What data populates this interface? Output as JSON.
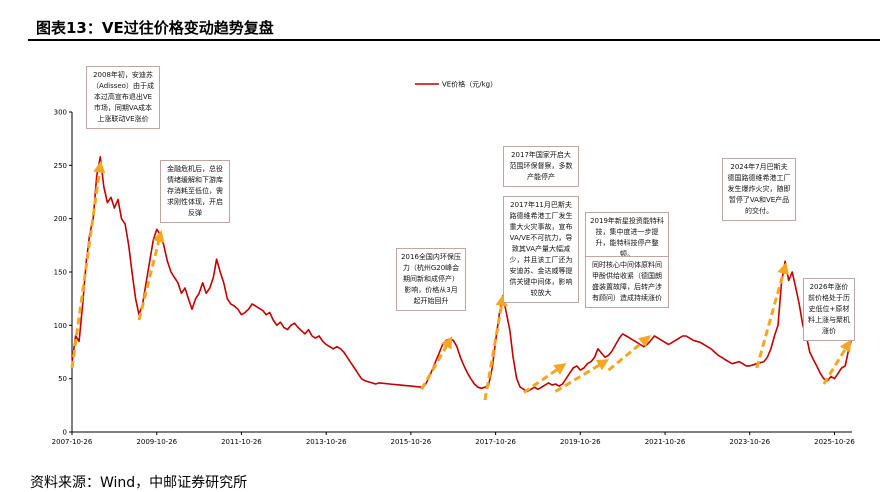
{
  "header": {
    "title": "图表13：VE过往价格变动趋势复盘"
  },
  "footer": {
    "source": "资料来源：Wind，中邮证券研究所"
  },
  "colors": {
    "series": "#c00000",
    "arrow": "#f5a623",
    "axis": "#000000",
    "annotation_border": "#c4a3a3"
  },
  "annotations": [
    {
      "id": "a2008",
      "text": "2008年初，安迪苏（Adisseo）由于成本过高宣布退出VE市场，同期VA成本上涨联动VE涨价"
    },
    {
      "id": "a2009",
      "text": "金融危机后，总役情绪缓解和下游库存消耗至低位，需求刚性体现，开启反弹"
    },
    {
      "id": "a2016",
      "text": "2016全国内环保压力（杭州G20峰会期间新和成停产）影响，价格从3月起开始回升"
    },
    {
      "id": "a2017a",
      "text": "2017年国家开启大范围环保督察，多数产能停产"
    },
    {
      "id": "a2017b",
      "text": "2017年11月巴斯夫路德维希港工厂发生重大火灾事故，宣布VA/VE不可抗力，导致其VA产量大幅减少，并且该工厂还为安迪苏、金达威等提供关键中间体，影响较放大"
    },
    {
      "id": "a2019",
      "text": "2019年新星投资能特科技，集中度进一步提升，能特科技停产整顿。"
    },
    {
      "id": "a2019b",
      "text": "同时核心中间体原料间甲酚供给收紧（德国朗盛装置故障，后转产涉有顾问）造成持续涨价"
    },
    {
      "id": "a2024",
      "text": "2024年7月巴斯夫德国路德维希港工厂发生爆炸火灾，随即暂停了VA和VE产品的交付。"
    },
    {
      "id": "a2026",
      "text": "2026年涨价前价格处于历史低位+原材料上涨与聚机涨价"
    }
  ],
  "chart_data": {
    "type": "line",
    "title": "",
    "xlabel": "",
    "ylabel": "",
    "ylim": [
      0,
      300
    ],
    "yticks": [
      0,
      50,
      100,
      150,
      200,
      250,
      300
    ],
    "xlim": [
      "2007-10-26",
      "2026-03-26"
    ],
    "xticks": [
      "2007-10-26",
      "2009-10-26",
      "2011-10-26",
      "2013-10-26",
      "2015-10-26",
      "2017-10-26",
      "2019-10-26",
      "2021-10-26",
      "2023-10-26",
      "2025-10-26"
    ],
    "legend": {
      "position": "top-center"
    },
    "grid": false,
    "series": [
      {
        "name": "VE价格（元/kg）",
        "points": [
          [
            "2007-10-26",
            65
          ],
          [
            "2007-11-26",
            90
          ],
          [
            "2007-12-26",
            85
          ],
          [
            "2008-01-26",
            120
          ],
          [
            "2008-02-26",
            160
          ],
          [
            "2008-03-26",
            185
          ],
          [
            "2008-04-26",
            200
          ],
          [
            "2008-05-26",
            240
          ],
          [
            "2008-06-26",
            258
          ],
          [
            "2008-07-26",
            230
          ],
          [
            "2008-08-26",
            215
          ],
          [
            "2008-09-26",
            220
          ],
          [
            "2008-10-26",
            210
          ],
          [
            "2008-11-26",
            218
          ],
          [
            "2008-12-26",
            200
          ],
          [
            "2009-01-26",
            195
          ],
          [
            "2009-02-26",
            175
          ],
          [
            "2009-03-26",
            150
          ],
          [
            "2009-04-26",
            125
          ],
          [
            "2009-05-26",
            110
          ],
          [
            "2009-06-26",
            120
          ],
          [
            "2009-07-26",
            140
          ],
          [
            "2009-08-26",
            160
          ],
          [
            "2009-09-26",
            180
          ],
          [
            "2009-10-26",
            190
          ],
          [
            "2009-11-26",
            185
          ],
          [
            "2009-12-26",
            175
          ],
          [
            "2010-01-26",
            160
          ],
          [
            "2010-02-26",
            150
          ],
          [
            "2010-03-26",
            145
          ],
          [
            "2010-04-26",
            140
          ],
          [
            "2010-05-26",
            130
          ],
          [
            "2010-06-26",
            135
          ],
          [
            "2010-07-26",
            125
          ],
          [
            "2010-08-26",
            115
          ],
          [
            "2010-09-26",
            125
          ],
          [
            "2010-10-26",
            130
          ],
          [
            "2010-11-26",
            140
          ],
          [
            "2010-12-26",
            130
          ],
          [
            "2011-01-26",
            135
          ],
          [
            "2011-02-26",
            145
          ],
          [
            "2011-03-26",
            162
          ],
          [
            "2011-04-26",
            150
          ],
          [
            "2011-05-26",
            140
          ],
          [
            "2011-06-26",
            125
          ],
          [
            "2011-07-26",
            120
          ],
          [
            "2011-08-26",
            118
          ],
          [
            "2011-09-26",
            115
          ],
          [
            "2011-10-26",
            110
          ],
          [
            "2011-11-26",
            112
          ],
          [
            "2011-12-26",
            115
          ],
          [
            "2012-01-26",
            120
          ],
          [
            "2012-02-26",
            118
          ],
          [
            "2012-03-26",
            116
          ],
          [
            "2012-04-26",
            114
          ],
          [
            "2012-05-26",
            110
          ],
          [
            "2012-06-26",
            112
          ],
          [
            "2012-07-26",
            105
          ],
          [
            "2012-08-26",
            100
          ],
          [
            "2012-09-26",
            103
          ],
          [
            "2012-10-26",
            98
          ],
          [
            "2012-11-26",
            96
          ],
          [
            "2012-12-26",
            100
          ],
          [
            "2013-01-26",
            102
          ],
          [
            "2013-02-26",
            98
          ],
          [
            "2013-03-26",
            95
          ],
          [
            "2013-04-26",
            92
          ],
          [
            "2013-05-26",
            96
          ],
          [
            "2013-06-26",
            90
          ],
          [
            "2013-07-26",
            88
          ],
          [
            "2013-08-26",
            90
          ],
          [
            "2013-09-26",
            85
          ],
          [
            "2013-10-26",
            82
          ],
          [
            "2013-11-26",
            80
          ],
          [
            "2013-12-26",
            78
          ],
          [
            "2014-01-26",
            80
          ],
          [
            "2014-02-26",
            78
          ],
          [
            "2014-03-26",
            75
          ],
          [
            "2014-04-26",
            70
          ],
          [
            "2014-05-26",
            65
          ],
          [
            "2014-06-26",
            60
          ],
          [
            "2014-07-26",
            55
          ],
          [
            "2014-08-26",
            50
          ],
          [
            "2014-09-26",
            48
          ],
          [
            "2014-10-26",
            47
          ],
          [
            "2014-11-26",
            46
          ],
          [
            "2014-12-26",
            45
          ],
          [
            "2015-01-26",
            46
          ],
          [
            "2015-04-26",
            45
          ],
          [
            "2015-07-26",
            44
          ],
          [
            "2015-10-26",
            43
          ],
          [
            "2016-01-26",
            42
          ],
          [
            "2016-02-26",
            44
          ],
          [
            "2016-03-26",
            50
          ],
          [
            "2016-04-26",
            58
          ],
          [
            "2016-05-26",
            66
          ],
          [
            "2016-06-26",
            74
          ],
          [
            "2016-07-26",
            82
          ],
          [
            "2016-08-26",
            86
          ],
          [
            "2016-09-26",
            87
          ],
          [
            "2016-10-26",
            86
          ],
          [
            "2016-11-26",
            80
          ],
          [
            "2016-12-26",
            70
          ],
          [
            "2017-01-26",
            62
          ],
          [
            "2017-02-26",
            55
          ],
          [
            "2017-03-26",
            50
          ],
          [
            "2017-04-26",
            45
          ],
          [
            "2017-05-26",
            42
          ],
          [
            "2017-06-26",
            41
          ],
          [
            "2017-07-26",
            42
          ],
          [
            "2017-08-26",
            44
          ],
          [
            "2017-09-26",
            60
          ],
          [
            "2017-10-26",
            85
          ],
          [
            "2017-11-26",
            110
          ],
          [
            "2017-12-26",
            128
          ],
          [
            "2018-01-26",
            112
          ],
          [
            "2018-02-26",
            95
          ],
          [
            "2018-03-26",
            70
          ],
          [
            "2018-04-26",
            50
          ],
          [
            "2018-05-26",
            42
          ],
          [
            "2018-06-26",
            40
          ],
          [
            "2018-07-26",
            38
          ],
          [
            "2018-08-26",
            40
          ],
          [
            "2018-09-26",
            42
          ],
          [
            "2018-10-26",
            40
          ],
          [
            "2018-11-26",
            42
          ],
          [
            "2018-12-26",
            44
          ],
          [
            "2019-01-26",
            46
          ],
          [
            "2019-02-26",
            44
          ],
          [
            "2019-03-26",
            45
          ],
          [
            "2019-04-26",
            43
          ],
          [
            "2019-05-26",
            45
          ],
          [
            "2019-06-26",
            50
          ],
          [
            "2019-07-26",
            55
          ],
          [
            "2019-08-26",
            60
          ],
          [
            "2019-09-26",
            62
          ],
          [
            "2019-10-26",
            58
          ],
          [
            "2019-11-26",
            60
          ],
          [
            "2019-12-26",
            64
          ],
          [
            "2020-01-26",
            66
          ],
          [
            "2020-02-26",
            70
          ],
          [
            "2020-03-26",
            78
          ],
          [
            "2020-04-26",
            74
          ],
          [
            "2020-05-26",
            70
          ],
          [
            "2020-06-26",
            72
          ],
          [
            "2020-07-26",
            76
          ],
          [
            "2020-08-26",
            82
          ],
          [
            "2020-09-26",
            88
          ],
          [
            "2020-10-26",
            92
          ],
          [
            "2020-11-26",
            90
          ],
          [
            "2020-12-26",
            88
          ],
          [
            "2021-01-26",
            86
          ],
          [
            "2021-02-26",
            84
          ],
          [
            "2021-03-26",
            82
          ],
          [
            "2021-04-26",
            80
          ],
          [
            "2021-05-26",
            82
          ],
          [
            "2021-06-26",
            86
          ],
          [
            "2021-07-26",
            90
          ],
          [
            "2021-08-26",
            88
          ],
          [
            "2021-09-26",
            86
          ],
          [
            "2021-10-26",
            84
          ],
          [
            "2021-11-26",
            82
          ],
          [
            "2021-12-26",
            84
          ],
          [
            "2022-01-26",
            86
          ],
          [
            "2022-02-26",
            88
          ],
          [
            "2022-03-26",
            90
          ],
          [
            "2022-04-26",
            90
          ],
          [
            "2022-05-26",
            88
          ],
          [
            "2022-06-26",
            86
          ],
          [
            "2022-07-26",
            85
          ],
          [
            "2022-08-26",
            84
          ],
          [
            "2022-09-26",
            82
          ],
          [
            "2022-10-26",
            80
          ],
          [
            "2022-11-26",
            78
          ],
          [
            "2022-12-26",
            75
          ],
          [
            "2023-01-26",
            72
          ],
          [
            "2023-02-26",
            70
          ],
          [
            "2023-03-26",
            68
          ],
          [
            "2023-04-26",
            66
          ],
          [
            "2023-05-26",
            64
          ],
          [
            "2023-06-26",
            65
          ],
          [
            "2023-07-26",
            66
          ],
          [
            "2023-08-26",
            64
          ],
          [
            "2023-09-26",
            62
          ],
          [
            "2023-10-26",
            62
          ],
          [
            "2023-11-26",
            63
          ],
          [
            "2023-12-26",
            64
          ],
          [
            "2024-01-26",
            65
          ],
          [
            "2024-02-26",
            66
          ],
          [
            "2024-03-26",
            70
          ],
          [
            "2024-04-26",
            78
          ],
          [
            "2024-05-26",
            90
          ],
          [
            "2024-06-26",
            100
          ],
          [
            "2024-07-26",
            140
          ],
          [
            "2024-08-26",
            160
          ],
          [
            "2024-09-26",
            142
          ],
          [
            "2024-10-26",
            150
          ],
          [
            "2024-11-26",
            135
          ],
          [
            "2024-12-26",
            120
          ],
          [
            "2025-01-26",
            100
          ],
          [
            "2025-02-26",
            90
          ],
          [
            "2025-03-26",
            75
          ],
          [
            "2025-04-26",
            68
          ],
          [
            "2025-05-26",
            62
          ],
          [
            "2025-06-26",
            55
          ],
          [
            "2025-07-26",
            50
          ],
          [
            "2025-08-26",
            48
          ],
          [
            "2025-09-26",
            52
          ],
          [
            "2025-10-26",
            50
          ],
          [
            "2025-11-26",
            55
          ],
          [
            "2025-12-26",
            60
          ],
          [
            "2026-01-26",
            62
          ],
          [
            "2026-02-26",
            78
          ],
          [
            "2026-03-26",
            88
          ]
        ]
      }
    ],
    "trend_arrows": [
      {
        "from": [
          "2007-10-26",
          60
        ],
        "to": [
          "2008-06-26",
          250
        ]
      },
      {
        "from": [
          "2009-05-26",
          105
        ],
        "to": [
          "2009-11-26",
          185
        ]
      },
      {
        "from": [
          "2016-01-26",
          40
        ],
        "to": [
          "2016-09-26",
          86
        ]
      },
      {
        "from": [
          "2017-07-26",
          30
        ],
        "to": [
          "2017-12-26",
          125
        ]
      },
      {
        "from": [
          "2018-06-26",
          37
        ],
        "to": [
          "2019-05-26",
          62
        ]
      },
      {
        "from": [
          "2019-03-26",
          38
        ],
        "to": [
          "2020-05-26",
          66
        ]
      },
      {
        "from": [
          "2020-06-26",
          58
        ],
        "to": [
          "2021-05-26",
          88
        ]
      },
      {
        "from": [
          "2023-12-26",
          60
        ],
        "to": [
          "2024-08-26",
          155
        ]
      },
      {
        "from": [
          "2025-07-26",
          45
        ],
        "to": [
          "2026-02-26",
          83
        ]
      }
    ]
  }
}
